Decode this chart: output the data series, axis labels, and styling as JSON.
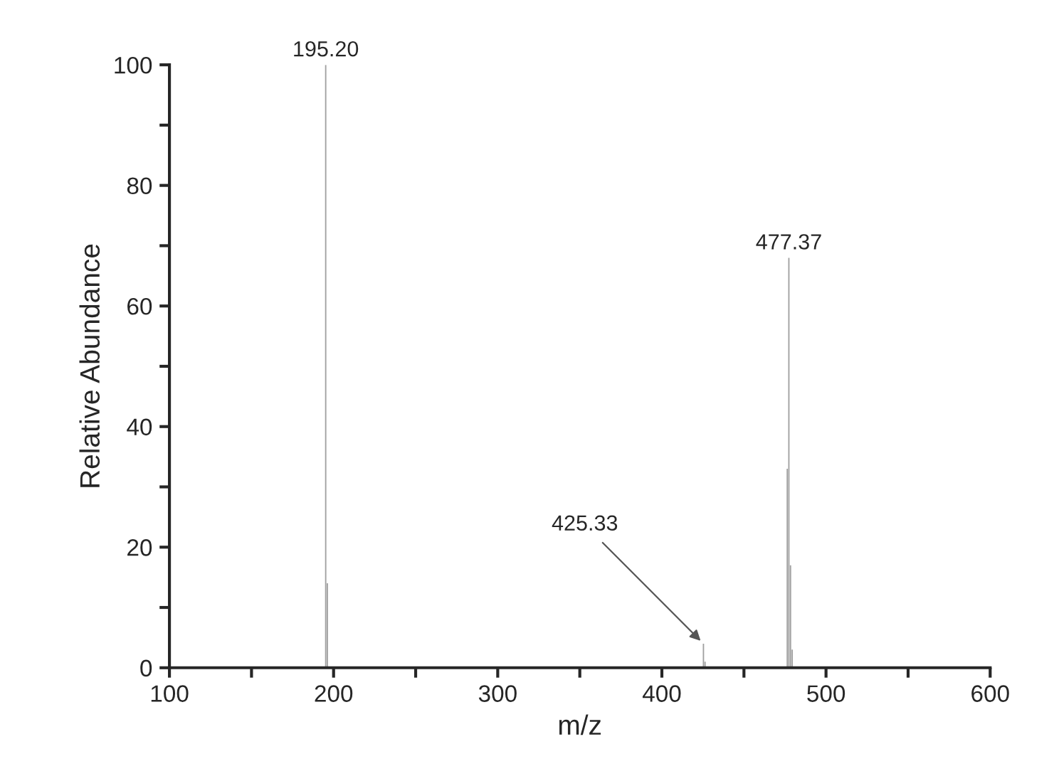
{
  "chart_data": {
    "type": "bar",
    "xlabel": "m/z",
    "ylabel": "Relative Abundance",
    "x": [
      195.2,
      196.2,
      425.33,
      426.3,
      476.4,
      477.37,
      478.37,
      479.4
    ],
    "values": [
      100,
      14,
      4,
      1,
      33,
      68,
      17,
      3
    ],
    "color": "#a0a0a0",
    "xlim": [
      100,
      600
    ],
    "ylim": [
      0,
      100
    ],
    "xticks": [
      100,
      {
        "value": 150,
        "label": null
      },
      200,
      {
        "value": 250,
        "label": null
      },
      300,
      {
        "value": 350,
        "label": null
      },
      400,
      {
        "value": 450,
        "label": null
      },
      500,
      {
        "value": 550,
        "label": null
      },
      600
    ],
    "yticks": [
      0,
      {
        "value": 10,
        "label": null
      },
      20,
      {
        "value": 30,
        "label": null
      },
      40,
      {
        "value": 50,
        "label": null
      },
      60,
      {
        "value": 70,
        "label": null
      },
      80,
      {
        "value": 90,
        "label": null
      },
      100
    ],
    "grid": false,
    "annotations": [
      {
        "text": "195.20",
        "x": 195.2,
        "y": 100
      },
      {
        "text": "425.33",
        "x": 425.33,
        "y": 4
      },
      {
        "text": "477.37",
        "x": 477.37,
        "y": 68
      }
    ]
  }
}
